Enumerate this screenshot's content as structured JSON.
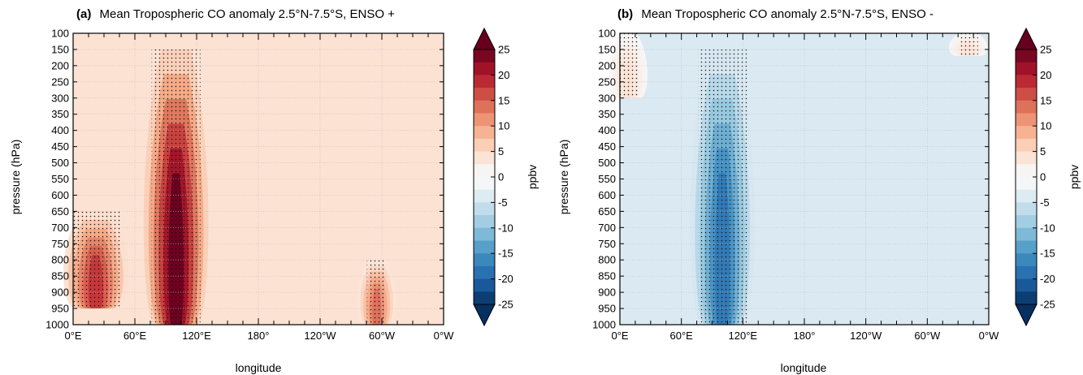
{
  "chart_data": [
    {
      "type": "heatmap",
      "panel_label": "(a)",
      "title": "Mean Tropospheric CO anomaly 2.5°N-7.5°S, ENSO +",
      "xlabel": "longitude",
      "ylabel": "pressure (hPa)",
      "colorbar_label": "ppbv",
      "x_ticks": [
        "0°E",
        "60°E",
        "120°E",
        "180°",
        "120°W",
        "60°W",
        "0°W"
      ],
      "y_ticks": [
        "100",
        "150",
        "200",
        "250",
        "300",
        "350",
        "400",
        "450",
        "500",
        "550",
        "600",
        "650",
        "700",
        "750",
        "800",
        "850",
        "900",
        "950",
        "1000"
      ],
      "colorbar_ticks": [
        "25",
        "20",
        "15",
        "10",
        "5",
        "0",
        "-5",
        "-10",
        "-15",
        "-20",
        "-25"
      ],
      "xlim": [
        0,
        360
      ],
      "ylim": [
        1000,
        100
      ],
      "clim": [
        -25,
        25
      ],
      "colormap": "RdBu_r",
      "grid": true,
      "stippling": "significant regions marked with black dots",
      "features": [
        {
          "lon": 100,
          "p_top": 150,
          "p_bottom": 1000,
          "peak": 25,
          "desc": "strong positive plume over Maritime Continent"
        },
        {
          "lon": 22,
          "p_top": 650,
          "p_bottom": 950,
          "peak": 18,
          "desc": "positive anomaly over Africa near surface"
        },
        {
          "lon": 295,
          "p_top": 800,
          "p_bottom": 1000,
          "peak": 14,
          "desc": "positive anomaly over South America near surface"
        },
        {
          "lon": 0,
          "p_top": 100,
          "p_bottom": 1000,
          "peak": 4,
          "desc": "broad weak positive background"
        }
      ]
    },
    {
      "type": "heatmap",
      "panel_label": "(b)",
      "title": "Mean Tropospheric CO anomaly 2.5°N-7.5°S, ENSO -",
      "xlabel": "longitude",
      "ylabel": "pressure (hPa)",
      "colorbar_label": "ppbv",
      "x_ticks": [
        "0°E",
        "60°E",
        "120°E",
        "180°",
        "120°W",
        "60°W",
        "0°W"
      ],
      "y_ticks": [
        "100",
        "150",
        "200",
        "250",
        "300",
        "350",
        "400",
        "450",
        "500",
        "550",
        "600",
        "650",
        "700",
        "750",
        "800",
        "850",
        "900",
        "950",
        "1000"
      ],
      "colorbar_ticks": [
        "25",
        "20",
        "15",
        "10",
        "5",
        "0",
        "-5",
        "-10",
        "-15",
        "-20",
        "-25"
      ],
      "xlim": [
        0,
        360
      ],
      "ylim": [
        1000,
        100
      ],
      "clim": [
        -25,
        25
      ],
      "colormap": "RdBu_r",
      "grid": true,
      "stippling": "significant regions marked with black dots",
      "features": [
        {
          "lon": 100,
          "p_top": 150,
          "p_bottom": 1000,
          "peak": -18,
          "desc": "negative plume over Maritime Continent"
        },
        {
          "lon": 60,
          "p_top": 100,
          "p_bottom": 1000,
          "peak": -4,
          "desc": "broad weak negative region"
        },
        {
          "lon": 8,
          "p_top": 100,
          "p_bottom": 300,
          "peak": 4,
          "desc": "weak positive near top-left"
        },
        {
          "lon": 340,
          "p_top": 100,
          "p_bottom": 170,
          "peak": 4,
          "desc": "weak positive near top-right"
        }
      ]
    }
  ]
}
